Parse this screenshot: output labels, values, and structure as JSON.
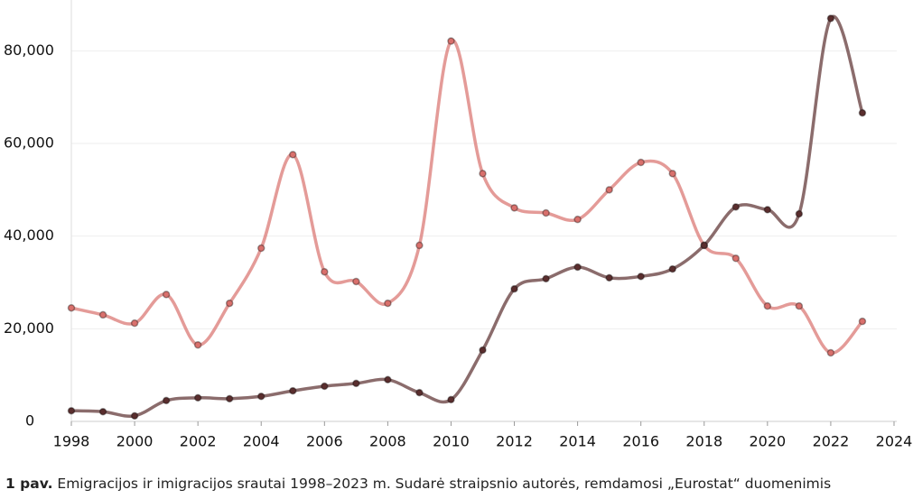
{
  "chart_data": {
    "type": "line",
    "x": [
      1998,
      1999,
      2000,
      2001,
      2002,
      2003,
      2004,
      2005,
      2006,
      2007,
      2008,
      2009,
      2010,
      2011,
      2012,
      2013,
      2014,
      2015,
      2016,
      2017,
      2018,
      2019,
      2020,
      2021,
      2022,
      2023
    ],
    "series": [
      {
        "color": "#d9706c",
        "values": [
          24500,
          23000,
          21200,
          27400,
          16500,
          25500,
          37400,
          57600,
          32300,
          30200,
          25500,
          38000,
          82100,
          53500,
          46100,
          45000,
          43600,
          50000,
          55900,
          53500,
          38000,
          35200,
          24900,
          24900,
          14800,
          21600
        ]
      },
      {
        "color": "#5a2e2e",
        "values": [
          2300,
          2100,
          1200,
          4500,
          5100,
          4900,
          5400,
          6600,
          7600,
          8200,
          9000,
          6200,
          4700,
          15400,
          28600,
          30800,
          33300,
          31000,
          31300,
          32900,
          38000,
          46300,
          45700,
          44800,
          87000,
          66600
        ]
      }
    ],
    "xlim": [
      1998,
      2024
    ],
    "xticks": [
      1998,
      2000,
      2002,
      2004,
      2006,
      2008,
      2010,
      2012,
      2014,
      2016,
      2018,
      2020,
      2022,
      2024
    ],
    "ylim": [
      0,
      90000
    ],
    "yticks": [
      0,
      {
        "value": 20000,
        "label": "20,000"
      },
      {
        "value": 40000,
        "label": "40,000"
      },
      {
        "value": 60000,
        "label": "60,000"
      },
      {
        "value": 80000,
        "label": "80,000"
      }
    ],
    "grid": true,
    "caption_label": "1 pav.",
    "caption": "Emigracijos ir imigracijos srautai 1998–2023 m. Sudarė straipsnio autorės, remdamosi „Eurostat“ duomenimis"
  }
}
